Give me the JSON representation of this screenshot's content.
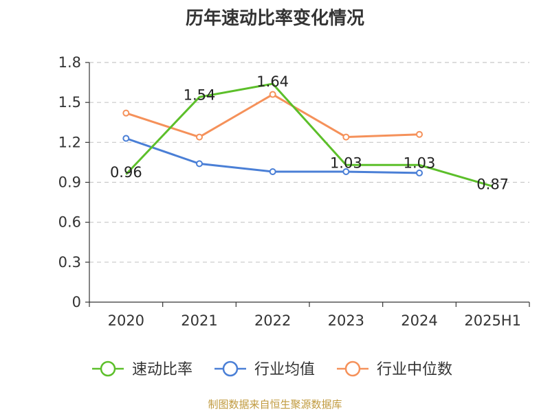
{
  "chart_data": {
    "type": "line",
    "title": "历年速动比率变化情况",
    "categories": [
      "2020",
      "2021",
      "2022",
      "2023",
      "2024",
      "2025H1"
    ],
    "ylim": [
      0,
      1.8
    ],
    "yticks": [
      "0",
      "0.3",
      "0.6",
      "0.9",
      "1.2",
      "1.5",
      "1.8"
    ],
    "grid": true,
    "legend_position": "bottom",
    "series": [
      {
        "name": "速动比率",
        "color": "#5cbf2a",
        "values": [
          0.96,
          1.54,
          1.64,
          1.03,
          1.03,
          0.87
        ],
        "labels": [
          "0.96",
          "1.54",
          "1.64",
          "1.03",
          "1.03",
          "0.87"
        ],
        "markers": false
      },
      {
        "name": "行业均值",
        "color": "#4a7fd6",
        "values": [
          1.23,
          1.04,
          0.98,
          0.98,
          0.97,
          null
        ],
        "markers": true
      },
      {
        "name": "行业中位数",
        "color": "#f5915a",
        "values": [
          1.42,
          1.24,
          1.56,
          1.24,
          1.26,
          null
        ],
        "markers": true
      }
    ]
  },
  "source": "制图数据来自恒生聚源数据库"
}
